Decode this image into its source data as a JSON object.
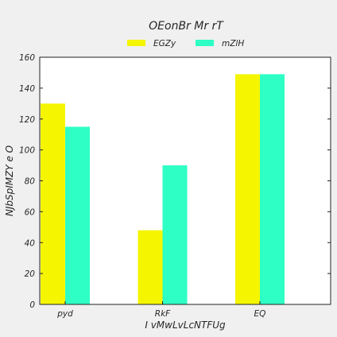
{
  "chart_data": {
    "type": "bar",
    "title": "OEonBr Mr rT",
    "xlabel": "I vMwLvLcNTFUg",
    "ylabel": "NJbSpIMZY  e O",
    "categories": [
      "pyd",
      "RkF",
      "EQ"
    ],
    "series": [
      {
        "name": "EGZy",
        "values": [
          130,
          48,
          149
        ],
        "color": "#f5f500"
      },
      {
        "name": "mZlH",
        "values": [
          115,
          90,
          149
        ],
        "color": "#2effc4"
      }
    ],
    "ylim": [
      0,
      160
    ],
    "yticks": [
      0,
      20,
      40,
      60,
      80,
      100,
      120,
      140,
      160
    ],
    "grid": false,
    "legend": "top-center"
  }
}
